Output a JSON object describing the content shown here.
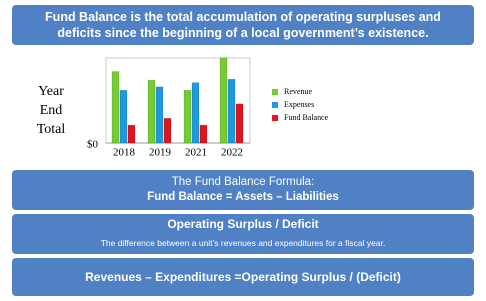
{
  "header": {
    "text": "Fund Balance is the total accumulation of operating surpluses and deficits since the beginning of a local government’s existence."
  },
  "chart_data": {
    "type": "bar",
    "ylabel": "Year End Total",
    "categories": [
      "2018",
      "2019",
      "2021",
      "2022"
    ],
    "series": [
      {
        "name": "Revenue",
        "color": "#74cc34",
        "values": [
          84,
          74,
          62,
          100
        ]
      },
      {
        "name": "Expenses",
        "color": "#1f9ae0",
        "values": [
          62,
          66,
          71,
          75
        ]
      },
      {
        "name": "Fund Balance",
        "color": "#e0141c",
        "values": [
          21,
          29,
          21,
          46
        ]
      }
    ],
    "ylim": [
      0,
      100
    ],
    "yticks": [
      {
        "value": 0,
        "label": "$0"
      }
    ],
    "legend": "right"
  },
  "formula": {
    "title": "The Fund Balance Formula:",
    "equation": "Fund Balance = Assets – Liabilities"
  },
  "surplus": {
    "title": "Operating Surplus / Deficit",
    "description": "The difference between a unit’s revenues and expenditures for a fiscal year."
  },
  "equation": {
    "text": "Revenues – Expenditures =Operating Surplus / (Deficit)"
  }
}
